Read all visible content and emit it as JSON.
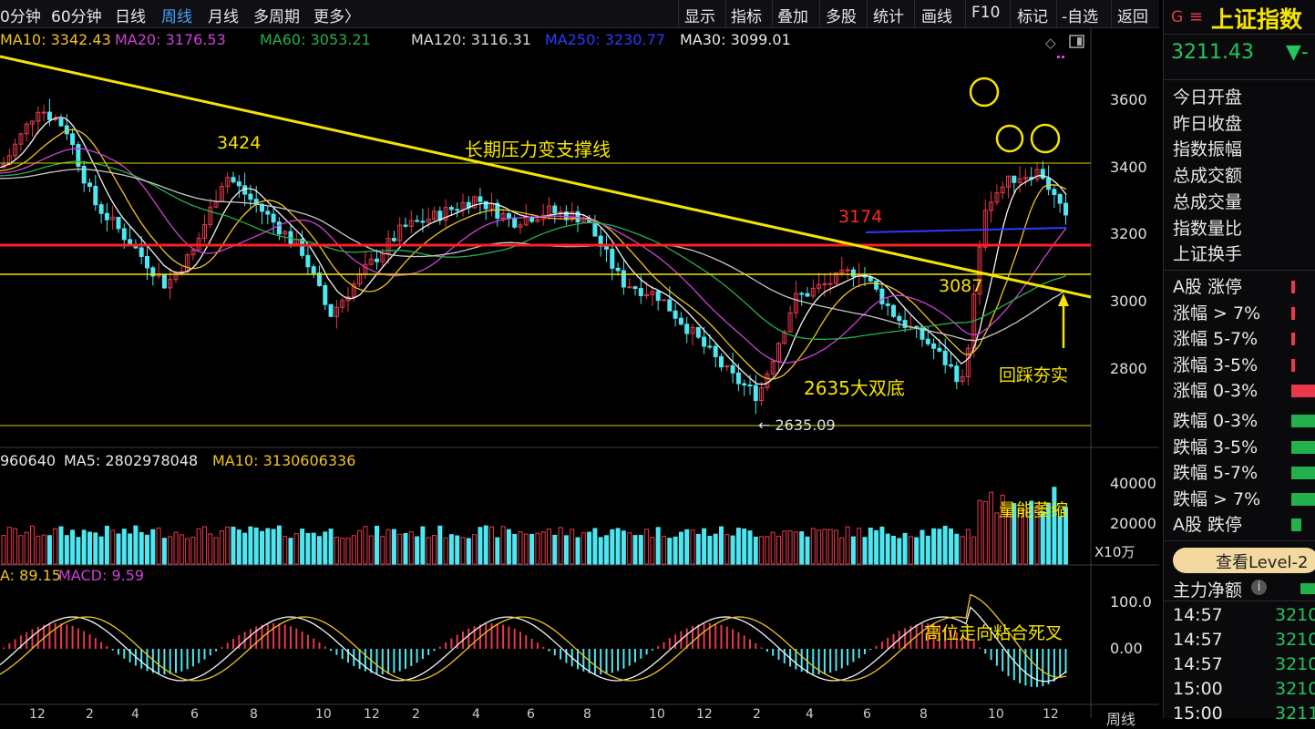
{
  "toolbar": {
    "left_tabs": [
      "0分钟",
      "60分钟",
      "日线",
      "周线",
      "月线",
      "多周期",
      "更多〉"
    ],
    "active_tab": "周线",
    "right_tools": [
      "显示",
      "指标",
      "叠加",
      "多股",
      "统计",
      "画线",
      "F10",
      "标记",
      "-自选",
      "返回"
    ]
  },
  "ma_legend": [
    {
      "label": "MA10: 3342.43",
      "color": "#f0c420"
    },
    {
      "label": "MA20: 3176.53",
      "color": "#d040d8"
    },
    {
      "label": "MA60: 3053.21",
      "color": "#22b14c"
    },
    {
      "label": "MA120: 3116.31",
      "color": "#d8d8d8"
    },
    {
      "label": "MA250: 3230.77",
      "color": "#2a3cff"
    },
    {
      "label": "MA30: 3099.01",
      "color": "#e8e8e8"
    }
  ],
  "price_axis": [
    "3600",
    "3400",
    "3200",
    "3000",
    "2800"
  ],
  "annotations": {
    "level_3424": "3424",
    "trend_label": "长期压力变支撑线",
    "level_3174": "3174",
    "level_3087": "3087",
    "double_bottom": "2635大双底",
    "low_label": "← 2635.09",
    "retest": "回踩夯实",
    "volume_note": "量能萎缩",
    "macd_note": "高位走向粘合死叉"
  },
  "volume_legend": [
    {
      "label": "960640",
      "color": "#e8e8e8"
    },
    {
      "label": "MA5: 2802978048",
      "color": "#e8e8e8"
    },
    {
      "label": "MA10: 3130606336",
      "color": "#f0c420"
    }
  ],
  "volume_axis": [
    "40000",
    "20000"
  ],
  "volume_unit": "X10万",
  "macd_legend": [
    {
      "label": "A: 89.15",
      "color": "#f0c420"
    },
    {
      "label": "MACD: 9.59",
      "color": "#d040d8"
    }
  ],
  "macd_axis": [
    "100.0",
    "0.00"
  ],
  "x_axis": [
    "12",
    "2",
    "4",
    "6",
    "8",
    "10",
    "12",
    "2",
    "4",
    "6",
    "8",
    "10",
    "12",
    "2",
    "4",
    "6",
    "8",
    "10",
    "12"
  ],
  "x_period": "周线",
  "quote": {
    "name": "上证指数",
    "price": "3211.43",
    "arrow": "▼-",
    "fields": [
      "今日开盘",
      "昨日收盘",
      "指数振幅",
      "总成交额",
      "总成交量",
      "指数量比",
      "上证换手"
    ],
    "breadth": [
      {
        "label": "A股 涨停",
        "type": "up",
        "level": 0.05
      },
      {
        "label": "涨幅 > 7%",
        "type": "up",
        "level": 0.05
      },
      {
        "label": "涨幅 5-7%",
        "type": "up",
        "level": 0.04
      },
      {
        "label": "涨幅 3-5%",
        "type": "up",
        "level": 0.05
      },
      {
        "label": "涨幅 0-3%",
        "type": "up",
        "level": 1.0
      },
      {
        "label": "跌幅 0-3%",
        "type": "down",
        "level": 1.0
      },
      {
        "label": "跌幅 3-5%",
        "type": "down",
        "level": 1.0
      },
      {
        "label": "跌幅 5-7%",
        "type": "down",
        "level": 1.0
      },
      {
        "label": "跌幅 > 7%",
        "type": "down",
        "level": 1.0
      },
      {
        "label": "A股 跌停",
        "type": "down",
        "level": 0.4
      }
    ],
    "level2_button": "查看Level-2",
    "main_net": "主力净额",
    "ticks": [
      {
        "time": "14:57",
        "value": "3210"
      },
      {
        "time": "14:57",
        "value": "3210"
      },
      {
        "time": "14:57",
        "value": "3210"
      },
      {
        "time": "15:00",
        "value": "3210"
      },
      {
        "time": "15:00",
        "value": "3211"
      }
    ]
  },
  "colors": {
    "up": "#e8384a",
    "down": "#4ee6f0",
    "yellow": "#f5e400",
    "red_line": "#ff2020"
  }
}
